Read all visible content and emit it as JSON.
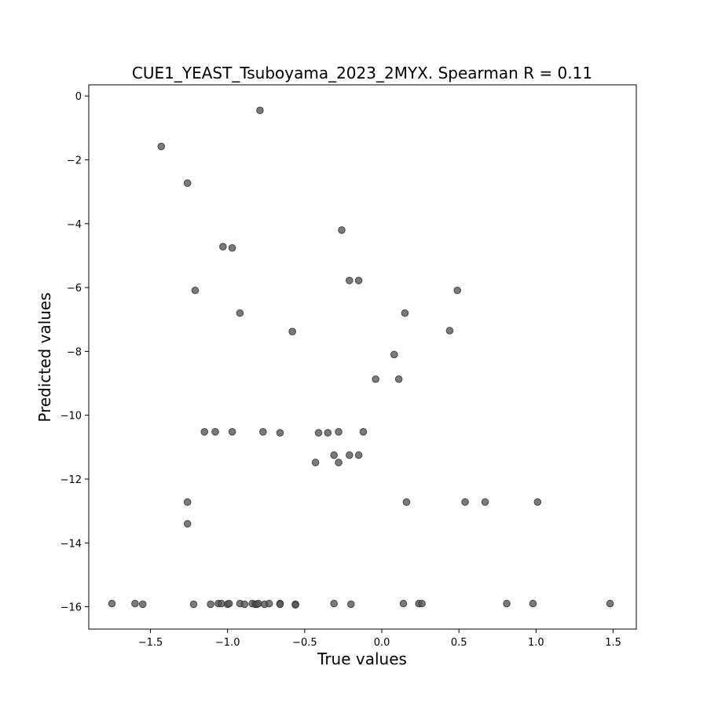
{
  "chart_data": {
    "type": "scatter",
    "title": "CUE1_YEAST_Tsuboyama_2023_2MYX. Spearman R = 0.11",
    "xlabel": "True values",
    "ylabel": "Predicted values",
    "xlim": [
      -1.9,
      1.65
    ],
    "ylim": [
      -16.7,
      0.35
    ],
    "x_ticks": [
      -1.5,
      -1.0,
      -0.5,
      0.0,
      0.5,
      1.0,
      1.5
    ],
    "x_tick_labels": [
      "−1.5",
      "−1.0",
      "−0.5",
      "0.0",
      "0.5",
      "1.0",
      "1.5"
    ],
    "y_ticks": [
      0,
      -2,
      -4,
      -6,
      -8,
      -10,
      -12,
      -14,
      -16
    ],
    "y_tick_labels": [
      "0",
      "−2",
      "−4",
      "−6",
      "−8",
      "−10",
      "−12",
      "−14",
      "−16"
    ],
    "grid": false,
    "marker_color": "#555555",
    "points": [
      {
        "x": -0.79,
        "y": -0.45
      },
      {
        "x": -1.43,
        "y": -1.58
      },
      {
        "x": -1.26,
        "y": -2.73
      },
      {
        "x": -1.03,
        "y": -4.72
      },
      {
        "x": -0.97,
        "y": -4.76
      },
      {
        "x": -0.26,
        "y": -4.2
      },
      {
        "x": -1.21,
        "y": -6.09
      },
      {
        "x": -0.92,
        "y": -6.8
      },
      {
        "x": -0.21,
        "y": -5.78
      },
      {
        "x": -0.15,
        "y": -5.78
      },
      {
        "x": 0.49,
        "y": -6.09
      },
      {
        "x": 0.15,
        "y": -6.8
      },
      {
        "x": -0.58,
        "y": -7.38
      },
      {
        "x": 0.44,
        "y": -7.35
      },
      {
        "x": 0.08,
        "y": -8.1
      },
      {
        "x": -0.04,
        "y": -8.87
      },
      {
        "x": 0.11,
        "y": -8.87
      },
      {
        "x": -1.15,
        "y": -10.52
      },
      {
        "x": -1.08,
        "y": -10.52
      },
      {
        "x": -0.97,
        "y": -10.52
      },
      {
        "x": -0.77,
        "y": -10.52
      },
      {
        "x": -0.66,
        "y": -10.55
      },
      {
        "x": -0.41,
        "y": -10.55
      },
      {
        "x": -0.35,
        "y": -10.55
      },
      {
        "x": -0.28,
        "y": -10.52
      },
      {
        "x": -0.12,
        "y": -10.52
      },
      {
        "x": -0.31,
        "y": -11.25
      },
      {
        "x": -0.21,
        "y": -11.25
      },
      {
        "x": -0.15,
        "y": -11.25
      },
      {
        "x": -0.43,
        "y": -11.48
      },
      {
        "x": -0.28,
        "y": -11.48
      },
      {
        "x": -1.26,
        "y": -12.72
      },
      {
        "x": 0.16,
        "y": -12.72
      },
      {
        "x": 0.54,
        "y": -12.72
      },
      {
        "x": 0.67,
        "y": -12.72
      },
      {
        "x": 1.01,
        "y": -12.72
      },
      {
        "x": -1.26,
        "y": -13.4
      },
      {
        "x": -1.75,
        "y": -15.9
      },
      {
        "x": -1.6,
        "y": -15.9
      },
      {
        "x": -1.55,
        "y": -15.92
      },
      {
        "x": -1.22,
        "y": -15.92
      },
      {
        "x": -1.11,
        "y": -15.92
      },
      {
        "x": -1.06,
        "y": -15.9
      },
      {
        "x": -1.04,
        "y": -15.9
      },
      {
        "x": -1.0,
        "y": -15.92
      },
      {
        "x": -0.99,
        "y": -15.9
      },
      {
        "x": -0.92,
        "y": -15.9
      },
      {
        "x": -0.89,
        "y": -15.92
      },
      {
        "x": -0.84,
        "y": -15.9
      },
      {
        "x": -0.82,
        "y": -15.92
      },
      {
        "x": -0.81,
        "y": -15.92
      },
      {
        "x": -0.8,
        "y": -15.9
      },
      {
        "x": -0.76,
        "y": -15.92
      },
      {
        "x": -0.73,
        "y": -15.9
      },
      {
        "x": -0.66,
        "y": -15.9
      },
      {
        "x": -0.66,
        "y": -15.92
      },
      {
        "x": -0.56,
        "y": -15.92
      },
      {
        "x": -0.56,
        "y": -15.94
      },
      {
        "x": -0.31,
        "y": -15.9
      },
      {
        "x": -0.2,
        "y": -15.92
      },
      {
        "x": 0.14,
        "y": -15.9
      },
      {
        "x": 0.24,
        "y": -15.9
      },
      {
        "x": 0.26,
        "y": -15.9
      },
      {
        "x": 0.81,
        "y": -15.9
      },
      {
        "x": 0.98,
        "y": -15.9
      },
      {
        "x": 1.48,
        "y": -15.9
      }
    ]
  }
}
